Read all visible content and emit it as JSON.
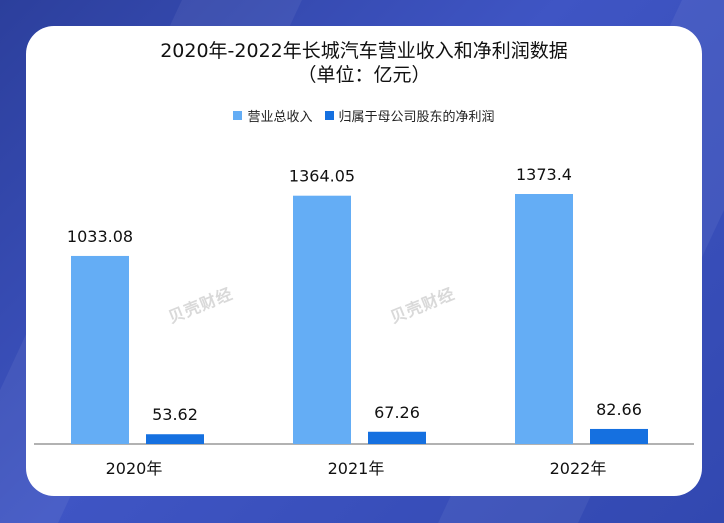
{
  "chart_data": {
    "type": "bar",
    "title": "2020年-2022年长城汽车营业收入和净利润数据",
    "subtitle": "（单位：亿元）",
    "categories": [
      "2020年",
      "2021年",
      "2022年"
    ],
    "series": [
      {
        "name": "营业总收入",
        "values": [
          1033.08,
          1364.05,
          1373.4
        ],
        "color": "#64adf5"
      },
      {
        "name": "归属于母公司股东的净利润",
        "values": [
          53.62,
          67.26,
          82.66
        ],
        "color": "#1570e0"
      }
    ],
    "data_labels": [
      [
        "1033.08",
        "1364.05",
        "1373.4"
      ],
      [
        "53.62",
        "67.26",
        "82.66"
      ]
    ],
    "legend_position": "top",
    "grid": false
  },
  "watermark": "贝壳财经"
}
